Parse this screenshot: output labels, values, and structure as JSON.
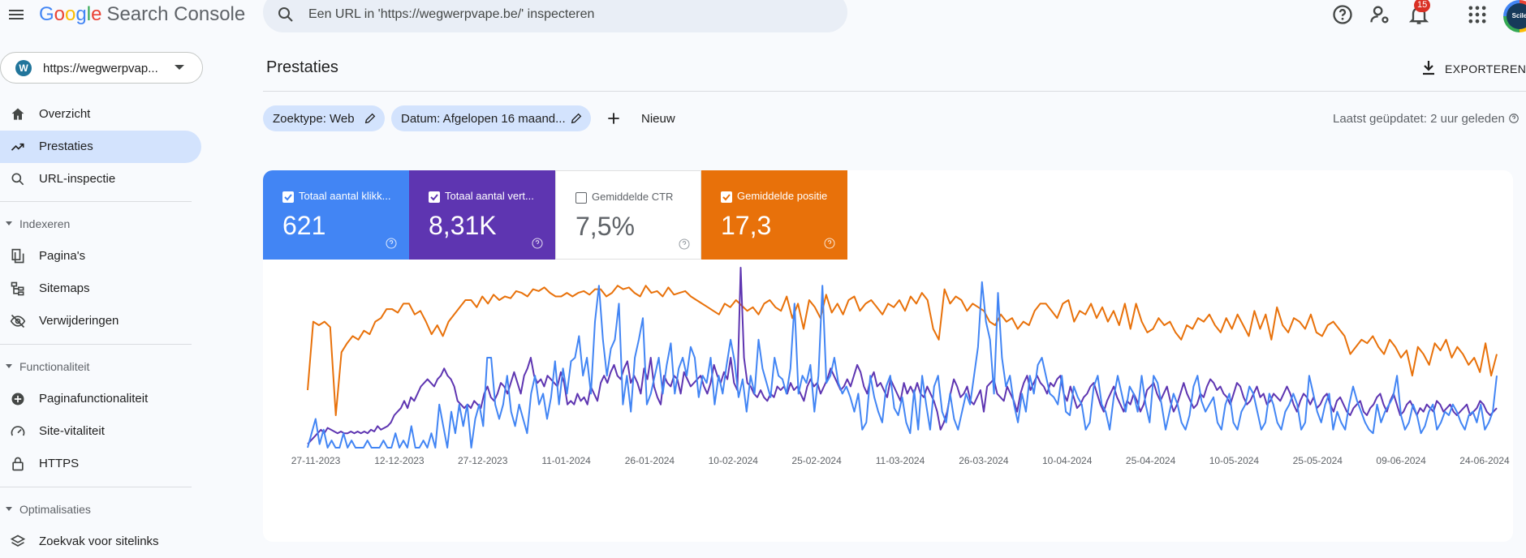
{
  "header": {
    "logo_letters": [
      "G",
      "o",
      "o",
      "g",
      "l",
      "e"
    ],
    "logo_product": "Search Console",
    "search_placeholder": "Een URL in 'https://wegwerpvape.be/' inspecteren",
    "notification_count": "15",
    "avatar_text": "Scile"
  },
  "sidebar": {
    "property_label": "https://wegwerpvap...",
    "items": [
      {
        "label": "Overzicht",
        "icon": "home-icon"
      },
      {
        "label": "Prestaties",
        "icon": "trending-up-icon",
        "active": true
      },
      {
        "label": "URL-inspectie",
        "icon": "search-icon"
      }
    ],
    "sections": [
      {
        "title": "Indexeren",
        "items": [
          {
            "label": "Pagina's",
            "icon": "pages-icon"
          },
          {
            "label": "Sitemaps",
            "icon": "sitemap-icon"
          },
          {
            "label": "Verwijderingen",
            "icon": "eye-off-icon"
          }
        ]
      },
      {
        "title": "Functionaliteit",
        "items": [
          {
            "label": "Paginafunctionaliteit",
            "icon": "plus-circle-icon"
          },
          {
            "label": "Site-vitaliteit",
            "icon": "speedometer-icon"
          },
          {
            "label": "HTTPS",
            "icon": "lock-icon"
          }
        ]
      },
      {
        "title": "Optimalisaties",
        "items": [
          {
            "label": "Zoekvak voor sitelinks",
            "icon": "layers-icon"
          }
        ]
      }
    ]
  },
  "main": {
    "title": "Prestaties",
    "export_label": "EXPORTEREN",
    "filters": [
      {
        "label": "Zoektype: Web"
      },
      {
        "label": "Datum: Afgelopen 16 maand..."
      }
    ],
    "new_label": "Nieuw",
    "updated_text": "Laatst geüpdatet: 2 uur geleden",
    "metrics": [
      {
        "label": "Totaal aantal klikk...",
        "value": "621",
        "checked": true,
        "color": "#4285f4"
      },
      {
        "label": "Totaal aantal vert...",
        "value": "8,31K",
        "checked": true,
        "color": "#5e35b1"
      },
      {
        "label": "Gemiddelde CTR",
        "value": "7,5%",
        "checked": false,
        "color": "#ffffff"
      },
      {
        "label": "Gemiddelde positie",
        "value": "17,3",
        "checked": true,
        "color": "#e8710a"
      }
    ]
  },
  "chart_data": {
    "type": "line",
    "x_tick_labels": [
      "27-11-2023",
      "12-12-2023",
      "27-12-2023",
      "11-01-2024",
      "26-01-2024",
      "10-02-2024",
      "25-02-2024",
      "11-03-2024",
      "26-03-2024",
      "10-04-2024",
      "25-04-2024",
      "10-05-2024",
      "25-05-2024",
      "09-06-2024",
      "24-06-2024"
    ],
    "series": [
      {
        "key": "position",
        "color": "#e8710a",
        "values": [
          0.32,
          0.7,
          0.68,
          0.7,
          0.67,
          0.18,
          0.53,
          0.58,
          0.62,
          0.6,
          0.65,
          0.63,
          0.7,
          0.72,
          0.77,
          0.77,
          0.75,
          0.8,
          0.8,
          0.74,
          0.76,
          0.7,
          0.63,
          0.68,
          0.62,
          0.7,
          0.74,
          0.78,
          0.82,
          0.82,
          0.78,
          0.84,
          0.8,
          0.85,
          0.82,
          0.84,
          0.83,
          0.87,
          0.86,
          0.84,
          0.88,
          0.87,
          0.89,
          0.86,
          0.84,
          0.84,
          0.86,
          0.84,
          0.86,
          0.87,
          0.85,
          0.88,
          0.88,
          0.84,
          0.86,
          0.9,
          0.88,
          0.89,
          0.86,
          0.84,
          0.9,
          0.86,
          0.87,
          0.84,
          0.89,
          0.85,
          0.86,
          0.87,
          0.84,
          0.82,
          0.8,
          0.78,
          0.76,
          0.74,
          0.8,
          0.78,
          0.82,
          0.79,
          0.76,
          0.78,
          0.74,
          0.8,
          0.82,
          0.78,
          0.76,
          0.84,
          0.72,
          0.8,
          0.66,
          0.82,
          0.78,
          0.72,
          0.85,
          0.75,
          0.8,
          0.74,
          0.82,
          0.84,
          0.76,
          0.8,
          0.82,
          0.78,
          0.74,
          0.8,
          0.78,
          0.82,
          0.76,
          0.84,
          0.8,
          0.86,
          0.82,
          0.66,
          0.6,
          0.88,
          0.8,
          0.84,
          0.82,
          0.76,
          0.8,
          0.78,
          0.76,
          0.7,
          0.68,
          0.74,
          0.7,
          0.72,
          0.66,
          0.7,
          0.68,
          0.76,
          0.8,
          0.8,
          0.76,
          0.72,
          0.8,
          0.82,
          0.7,
          0.76,
          0.74,
          0.8,
          0.72,
          0.78,
          0.7,
          0.76,
          0.68,
          0.8,
          0.66,
          0.8,
          0.7,
          0.64,
          0.66,
          0.72,
          0.68,
          0.7,
          0.64,
          0.6,
          0.68,
          0.66,
          0.72,
          0.7,
          0.74,
          0.68,
          0.64,
          0.72,
          0.66,
          0.74,
          0.68,
          0.62,
          0.76,
          0.66,
          0.74,
          0.6,
          0.78,
          0.68,
          0.64,
          0.72,
          0.7,
          0.66,
          0.74,
          0.64,
          0.62,
          0.68,
          0.7,
          0.66,
          0.62,
          0.52,
          0.56,
          0.6,
          0.58,
          0.62,
          0.56,
          0.52,
          0.6,
          0.56,
          0.5,
          0.54,
          0.4,
          0.56,
          0.52,
          0.46,
          0.58,
          0.54,
          0.6,
          0.5,
          0.56,
          0.52,
          0.46,
          0.5,
          0.42,
          0.58,
          0.4,
          0.52
        ]
      },
      {
        "key": "impressions",
        "color": "#5e35b1",
        "values": [
          0.02,
          0.04,
          0.06,
          0.08,
          0.1,
          0.08,
          0.11,
          0.1,
          0.09,
          0.08,
          0.09,
          0.08,
          0.08,
          0.09,
          0.08,
          0.09,
          0.08,
          0.09,
          0.08,
          0.1,
          0.09,
          0.12,
          0.1,
          0.11,
          0.12,
          0.14,
          0.18,
          0.2,
          0.22,
          0.26,
          0.22,
          0.28,
          0.26,
          0.3,
          0.34,
          0.36,
          0.38,
          0.36,
          0.34,
          0.38,
          0.4,
          0.44,
          0.4,
          0.38,
          0.34,
          0.26,
          0.24,
          0.22,
          0.24,
          0.22,
          0.26,
          0.24,
          0.22,
          0.3,
          0.34,
          0.28,
          0.26,
          0.3,
          0.36,
          0.34,
          0.3,
          0.36,
          0.42,
          0.36,
          0.3,
          0.4,
          0.44,
          0.5,
          0.4,
          0.36,
          0.38,
          0.34,
          0.4,
          0.38,
          0.36,
          0.34,
          0.42,
          0.36,
          0.24,
          0.26,
          0.24,
          0.3,
          0.26,
          0.28,
          0.24,
          0.34,
          0.3,
          0.26,
          0.36,
          0.4,
          0.36,
          0.42,
          0.46,
          0.4,
          0.38,
          0.44,
          0.48,
          0.36,
          0.4,
          0.36,
          0.3,
          0.44,
          0.38,
          0.5,
          0.34,
          0.28,
          0.24,
          0.4,
          0.36,
          0.34,
          0.4,
          0.38,
          0.3,
          0.42,
          0.38,
          0.34,
          0.36,
          0.38,
          0.4,
          0.34,
          0.3,
          0.36,
          0.46,
          0.4,
          0.36,
          0.42,
          0.38,
          0.5,
          0.36,
          0.32,
          1.0,
          0.5,
          0.36,
          0.34,
          0.3,
          0.28,
          0.32,
          0.28,
          0.26,
          0.3,
          0.28,
          0.34,
          0.32,
          0.34,
          0.3,
          0.36,
          0.32,
          0.34,
          0.3,
          0.26,
          0.34,
          0.38,
          0.34,
          0.36,
          0.3,
          0.34,
          0.38,
          0.44,
          0.4,
          0.36,
          0.32,
          0.34,
          0.38,
          0.34,
          0.4,
          0.46,
          0.42,
          0.34,
          0.3,
          0.38,
          0.42,
          0.34,
          0.36,
          0.32,
          0.28,
          0.38,
          0.34,
          0.3,
          0.26,
          0.36,
          0.3,
          0.34,
          0.3,
          0.36,
          0.3,
          0.28,
          0.34,
          0.3,
          0.26,
          0.2,
          0.1,
          0.14,
          0.2,
          0.3,
          0.38,
          0.34,
          0.28,
          0.3,
          0.34,
          0.26,
          0.24,
          0.28,
          0.32,
          0.2,
          0.34,
          0.36,
          0.38,
          0.3,
          0.28,
          0.26,
          0.34,
          0.3,
          0.26,
          0.2,
          0.3,
          0.36,
          0.4,
          0.32,
          0.36,
          0.4,
          0.36,
          0.34,
          0.3,
          0.36,
          0.34,
          0.38,
          0.4,
          0.3,
          0.26,
          0.34,
          0.28,
          0.22,
          0.24,
          0.28,
          0.3,
          0.34,
          0.36,
          0.3,
          0.24,
          0.2,
          0.26,
          0.3,
          0.34,
          0.28,
          0.24,
          0.2,
          0.26,
          0.24,
          0.3,
          0.26,
          0.2,
          0.24,
          0.32,
          0.34,
          0.36,
          0.3,
          0.26,
          0.3,
          0.34,
          0.26,
          0.2,
          0.24,
          0.3,
          0.36,
          0.3,
          0.26,
          0.22,
          0.24,
          0.3,
          0.28,
          0.34,
          0.38,
          0.36,
          0.32,
          0.34,
          0.3,
          0.28,
          0.24,
          0.3,
          0.36,
          0.34,
          0.28,
          0.24,
          0.26,
          0.3,
          0.34,
          0.28,
          0.3,
          0.24,
          0.26,
          0.3,
          0.28,
          0.26,
          0.3,
          0.34,
          0.3,
          0.24,
          0.2,
          0.26,
          0.3,
          0.28,
          0.24,
          0.28,
          0.22,
          0.24,
          0.28,
          0.3,
          0.24,
          0.2,
          0.26,
          0.28,
          0.24,
          0.2,
          0.18,
          0.22,
          0.24,
          0.26,
          0.2,
          0.18,
          0.22,
          0.24,
          0.28,
          0.3,
          0.24,
          0.2,
          0.26,
          0.3,
          0.24,
          0.18,
          0.2,
          0.24,
          0.26,
          0.22,
          0.18,
          0.22,
          0.2,
          0.24,
          0.22,
          0.2,
          0.26,
          0.24,
          0.2,
          0.22,
          0.24,
          0.2,
          0.18,
          0.2,
          0.22,
          0.24,
          0.18,
          0.2,
          0.22,
          0.26,
          0.24,
          0.2,
          0.18,
          0.2,
          0.22
        ]
      },
      {
        "key": "clicks",
        "color": "#4285f4",
        "values": [
          0,
          0.08,
          0.16,
          0.02,
          0.1,
          0.0,
          0.04,
          0.0,
          0.0,
          0.08,
          0.0,
          0.04,
          0.0,
          0.0,
          0.0,
          0.04,
          0.0,
          0.0,
          0.0,
          0.04,
          0.0,
          0.0,
          0.08,
          0.0,
          0.04,
          0.0,
          0.12,
          0.0,
          0.0,
          0.04,
          0.0,
          0.08,
          0.0,
          0.24,
          0.12,
          0.0,
          0.2,
          0.08,
          0.24,
          0.12,
          0.24,
          0.0,
          0.16,
          0.24,
          0.12,
          0.5,
          0.5,
          0.24,
          0.16,
          0.24,
          0.4,
          0.2,
          0.12,
          0.24,
          0.16,
          0.08,
          0.3,
          0.4,
          0.24,
          0.3,
          0.16,
          0.28,
          0.48,
          0.24,
          0.44,
          0.3,
          0.48,
          0.5,
          0.62,
          0.4,
          0.5,
          0.3,
          0.7,
          0.9,
          0.6,
          0.4,
          0.55,
          0.6,
          0.8,
          0.24,
          0.4,
          0.2,
          0.5,
          0.6,
          0.72,
          0.24,
          0.3,
          0.4,
          0.5,
          0.3,
          0.46,
          0.58,
          0.3,
          0.44,
          0.5,
          0.4,
          0.56,
          0.5,
          0.28,
          0.4,
          0.36,
          0.5,
          0.24,
          0.4,
          0.3,
          0.46,
          0.6,
          0.48,
          0.28,
          0.38,
          0.2,
          0.4,
          0.3,
          0.6,
          0.44,
          0.36,
          0.28,
          0.5,
          0.4,
          0.38,
          0.3,
          0.44,
          0.8,
          0.3,
          0.4,
          0.36,
          0.46,
          0.2,
          0.4,
          0.9,
          0.36,
          0.4,
          0.5,
          0.36,
          0.3,
          0.34,
          0.28,
          0.2,
          0.3,
          0.1,
          0.14,
          0.4,
          0.28,
          0.2,
          0.14,
          0.34,
          0.4,
          0.22,
          0.18,
          0.28,
          0.14,
          0.08,
          0.32,
          0.1,
          0.4,
          0.24,
          0.1,
          0.34,
          0.4,
          0.2,
          0.14,
          0.3,
          0.16,
          0.1,
          0.2,
          0.3,
          0.24,
          0.4,
          0.56,
          0.92,
          0.7,
          0.6,
          0.3,
          0.86,
          0.5,
          0.34,
          0.4,
          0.24,
          0.14,
          0.3,
          0.2,
          0.4,
          0.3,
          0.46,
          0.5,
          0.4,
          0.3,
          0.28,
          0.24,
          0.4,
          0.2,
          0.18,
          0.34,
          0.28,
          0.24,
          0.1,
          0.14,
          0.34,
          0.4,
          0.24,
          0.2,
          0.1,
          0.28,
          0.4,
          0.3,
          0.2,
          0.34,
          0.3,
          0.2,
          0.4,
          0.24,
          0.14,
          0.4,
          0.36,
          0.24,
          0.1,
          0.2,
          0.3,
          0.24,
          0.14,
          0.1,
          0.18,
          0.34,
          0.4,
          0.26,
          0.2,
          0.24,
          0.28,
          0.14,
          0.1,
          0.24,
          0.3,
          0.14,
          0.1,
          0.2,
          0.24,
          0.34,
          0.3,
          0.2,
          0.1,
          0.14,
          0.3,
          0.24,
          0.14,
          0.1,
          0.2,
          0.24,
          0.3,
          0.24,
          0.1,
          0.14,
          0.4,
          0.3,
          0.2,
          0.14,
          0.24,
          0.3,
          0.1,
          0.2,
          0.14,
          0.1,
          0.24,
          0.34,
          0.26,
          0.2,
          0.14,
          0.1,
          0.08,
          0.24,
          0.14,
          0.2,
          0.24,
          0.28,
          0.4,
          0.18,
          0.1,
          0.14,
          0.24,
          0.18,
          0.08,
          0.12,
          0.2,
          0.24,
          0.1,
          0.14,
          0.2,
          0.18,
          0.24,
          0.2,
          0.14,
          0.1,
          0.18,
          0.2,
          0.14,
          0.24,
          0.1,
          0.14,
          0.2,
          0.4
        ]
      }
    ]
  }
}
